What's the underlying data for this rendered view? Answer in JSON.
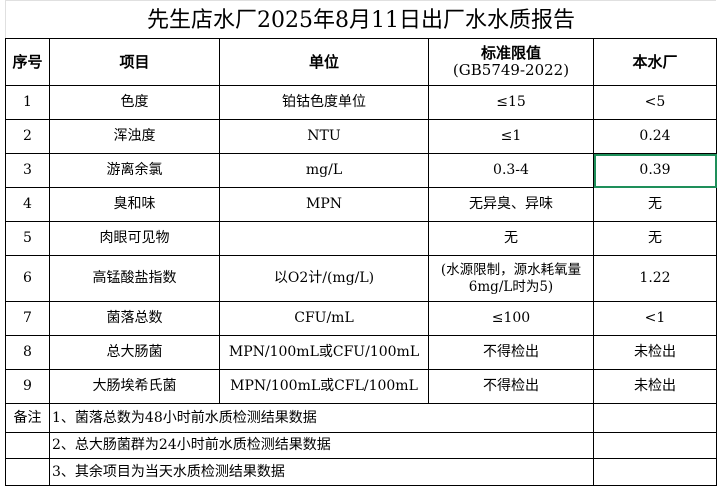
{
  "title": "先生店水厂2025年8月11日出厂水水质报告",
  "headers": {
    "no": "序号",
    "item": "项目",
    "unit": "单位",
    "standard": "标准限值",
    "standard_code": "(GB5749-2022)",
    "plant": "本水厂"
  },
  "rows": [
    {
      "no": "1",
      "item": "色度",
      "unit": "铂钴色度单位",
      "standard": "≤15",
      "value": "<5"
    },
    {
      "no": "2",
      "item": "浑浊度",
      "unit": "NTU",
      "standard": "≤1",
      "value": "0.24"
    },
    {
      "no": "3",
      "item": "游离余氯",
      "unit": "mg/L",
      "standard": "0.3-4",
      "value": "0.39"
    },
    {
      "no": "4",
      "item": "臭和味",
      "unit": "MPN",
      "standard": "无异臭、异味",
      "value": "无"
    },
    {
      "no": "5",
      "item": "肉眼可见物",
      "unit": "",
      "standard": "无",
      "value": "无"
    },
    {
      "no": "6",
      "item": "高锰酸盐指数",
      "unit": "以O2计/(mg/L)",
      "standard": "(水源限制，源水耗氧量6mg/L时为5)",
      "value": "1.22"
    },
    {
      "no": "7",
      "item": "菌落总数",
      "unit": "CFU/mL",
      "standard": "≤100",
      "value": "<1"
    },
    {
      "no": "8",
      "item": "总大肠菌",
      "unit": "MPN/100mL或CFU/100mL",
      "standard": "不得检出",
      "value": "未检出"
    },
    {
      "no": "9",
      "item": "大肠埃希氏菌",
      "unit": "MPN/100mL或CFL/100mL",
      "standard": "不得检出",
      "value": "未检出"
    }
  ],
  "notes_label": "备注",
  "notes": [
    "1、菌落总数为48小时前水质检测结果数据",
    "2、总大肠菌群为24小时前水质检测结果数据",
    "3、其余项目为当天水质检测结果数据"
  ],
  "selection_color": "#1e8f5a"
}
